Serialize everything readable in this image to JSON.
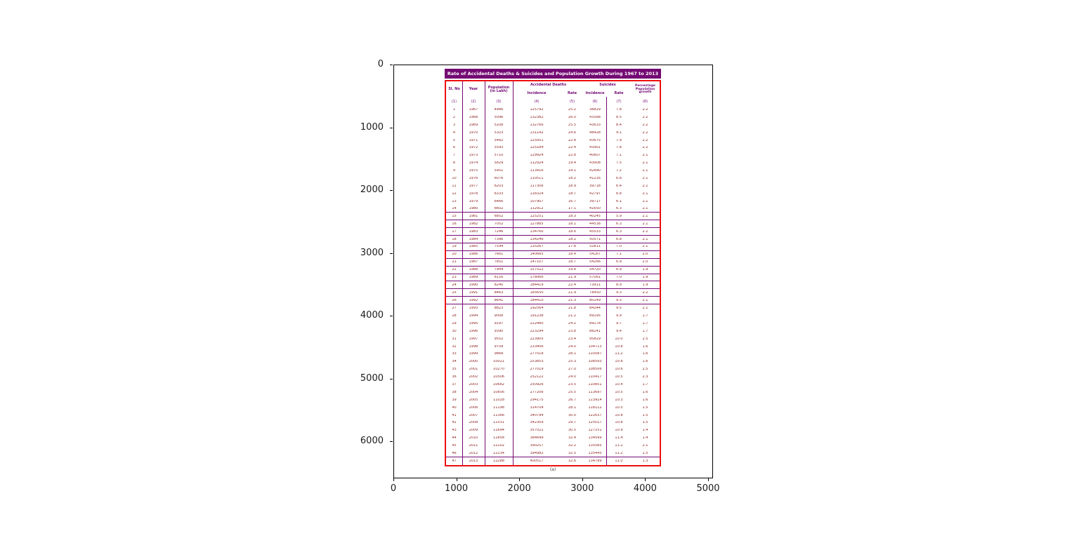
{
  "figure": {
    "background": "#ffffff"
  },
  "axes": {
    "x_ticks": [
      "0",
      "1000",
      "2000",
      "3000",
      "4000",
      "5000"
    ],
    "y_ticks": [
      "0",
      "1000",
      "2000",
      "3000",
      "4000",
      "5000",
      "6000"
    ]
  },
  "colors": {
    "title_bar": "#730973",
    "table_border": "#ee0e0e",
    "separator": "#730973",
    "cell_text": "#8b1a1a"
  },
  "chart_data": {
    "type": "table",
    "title": "Rate of Accidental Deaths & Suicides and Population Growth During 1967 to 2013",
    "caption": "(a)",
    "axes": {
      "x_tick_labels": [
        "0",
        "1000",
        "2000",
        "3000",
        "4000",
        "5000"
      ],
      "y_tick_labels": [
        "0",
        "1000",
        "2000",
        "3000",
        "4000",
        "5000",
        "6000"
      ],
      "x_range": [
        0,
        5080
      ],
      "y_range": [
        6590,
        0
      ],
      "grid": false
    },
    "header": {
      "sl_no": "Sl. No",
      "year": "Year",
      "population": "Population (in Lakh)",
      "accidental_deaths": "Accidental Deaths",
      "suicides": "Suicides",
      "incidence": "Incidence",
      "rate": "Rate",
      "growth": "Percentage Population growth"
    },
    "column_numbers": [
      "(1)",
      "(2)",
      "(3)",
      "(4)",
      "(5)",
      "(6)",
      "(7)",
      "(8)"
    ],
    "columns": [
      "Sl. No",
      "Year",
      "Population (in Lakh)",
      "Accidental Deaths Incidence",
      "Accidental Deaths Rate",
      "Suicides Incidence",
      "Suicides Rate",
      "Percentage Population growth"
    ],
    "rows": [
      [
        "1",
        "1967",
        "4986",
        "125792",
        "25.2",
        "38829",
        "7.8",
        "2.2"
      ],
      [
        "2",
        "1968",
        "5096",
        "132382",
        "26.0",
        "43588",
        "8.5",
        "2.2"
      ],
      [
        "3",
        "1969",
        "5208",
        "132766",
        "25.5",
        "43633",
        "8.4",
        "2.2"
      ],
      [
        "4",
        "1970",
        "5323",
        "131142",
        "24.6",
        "48428",
        "9.1",
        "2.2"
      ],
      [
        "5",
        "1971",
        "5482",
        "125001",
        "22.8",
        "43675",
        "7.9",
        "2.2"
      ],
      [
        "6",
        "1972",
        "5593",
        "125184",
        "22.4",
        "43901",
        "7.8",
        "2.2"
      ],
      [
        "7",
        "1973",
        "5710",
        "129924",
        "22.8",
        "40807",
        "7.1",
        "2.1"
      ],
      [
        "8",
        "1974",
        "5829",
        "112924",
        "19.4",
        "43908",
        "7.5",
        "2.1"
      ],
      [
        "9",
        "1975",
        "5951",
        "113916",
        "19.1",
        "42890",
        "7.2",
        "2.1"
      ],
      [
        "10",
        "1976",
        "6076",
        "110511",
        "18.2",
        "41216",
        "6.8",
        "2.1"
      ],
      [
        "11",
        "1977",
        "6203",
        "117306",
        "18.9",
        "39718",
        "6.4",
        "2.1"
      ],
      [
        "12",
        "1978",
        "6333",
        "118324",
        "18.7",
        "42797",
        "6.8",
        "2.1"
      ],
      [
        "13",
        "1979",
        "6466",
        "107907",
        "16.7",
        "39717",
        "6.1",
        "2.1"
      ],
      [
        "14",
        "1980",
        "6602",
        "112912",
        "17.1",
        "41650",
        "6.3",
        "2.1"
      ],
      [
        "15",
        "1981",
        "6852",
        "125251",
        "18.3",
        "40245",
        "5.9",
        "2.1"
      ],
      [
        "16",
        "1982",
        "7052",
        "127885",
        "18.1",
        "44538",
        "6.3",
        "2.1"
      ],
      [
        "17",
        "1983",
        "7246",
        "134760",
        "18.6",
        "45533",
        "6.3",
        "2.2"
      ],
      [
        "18",
        "1984",
        "7396",
        "134246",
        "18.2",
        "50571",
        "6.8",
        "2.1"
      ],
      [
        "19",
        "1985",
        "7594",
        "135267",
        "17.8",
        "52811",
        "7.0",
        "2.1"
      ],
      [
        "20",
        "1986",
        "7661",
        "140685",
        "18.4",
        "54167",
        "7.1",
        "2.0"
      ],
      [
        "21",
        "1987",
        "7851",
        "147107",
        "18.7",
        "54266",
        "6.9",
        "2.0"
      ],
      [
        "22",
        "1988",
        "7944",
        "157522",
        "19.8",
        "54720",
        "6.9",
        "1.9"
      ],
      [
        "23",
        "1989",
        "8116",
        "178066",
        "21.9",
        "57061",
        "7.0",
        "1.9"
      ],
      [
        "24",
        "1990",
        "8240",
        "184419",
        "22.4",
        "73911",
        "8.9",
        "1.9"
      ],
      [
        "25",
        "1991",
        "8463",
        "185650",
        "21.9",
        "78450",
        "9.3",
        "2.2"
      ],
      [
        "26",
        "1992",
        "8641",
        "184410",
        "21.3",
        "80149",
        "9.3",
        "2.1"
      ],
      [
        "27",
        "1993",
        "8823",
        "192564",
        "21.8",
        "84244",
        "9.5",
        "2.1"
      ],
      [
        "28",
        "1994",
        "9008",
        "191238",
        "21.2",
        "89195",
        "9.9",
        "1.7"
      ],
      [
        "29",
        "1995",
        "9197",
        "222480",
        "24.2",
        "89178",
        "9.7",
        "1.7"
      ],
      [
        "30",
        "1996",
        "9390",
        "223294",
        "23.8",
        "88241",
        "9.4",
        "1.7"
      ],
      [
        "31",
        "1997",
        "9552",
        "223905",
        "23.4",
        "95829",
        "10.0",
        "2.5"
      ],
      [
        "32",
        "1998",
        "9709",
        "233406",
        "24.0",
        "104713",
        "10.8",
        "1.6"
      ],
      [
        "33",
        "1999",
        "9868",
        "277018",
        "28.1",
        "110587",
        "11.2",
        "1.6"
      ],
      [
        "34",
        "2000",
        "10021",
        "253853",
        "25.3",
        "108593",
        "10.8",
        "1.6"
      ],
      [
        "35",
        "2001",
        "10270",
        "277019",
        "27.0",
        "108506",
        "10.6",
        "2.5"
      ],
      [
        "36",
        "2002",
        "10506",
        "252122",
        "24.0",
        "110417",
        "10.5",
        "2.3"
      ],
      [
        "37",
        "2003",
        "10682",
        "250926",
        "23.5",
        "110851",
        "10.4",
        "1.7"
      ],
      [
        "38",
        "2004",
        "10856",
        "277206",
        "25.5",
        "113697",
        "10.5",
        "1.6"
      ],
      [
        "39",
        "2005",
        "11028",
        "294175",
        "26.7",
        "113914",
        "10.3",
        "1.6"
      ],
      [
        "40",
        "2006",
        "11198",
        "314704",
        "28.1",
        "118112",
        "10.5",
        "1.5"
      ],
      [
        "41",
        "2007",
        "11366",
        "340794",
        "30.0",
        "122637",
        "10.8",
        "1.5"
      ],
      [
        "42",
        "2008",
        "11531",
        "342309",
        "29.7",
        "125017",
        "10.8",
        "1.5"
      ],
      [
        "43",
        "2009",
        "11694",
        "357021",
        "30.5",
        "127151",
        "10.9",
        "1.4"
      ],
      [
        "44",
        "2010",
        "11858",
        "384649",
        "32.4",
        "134599",
        "11.4",
        "1.4"
      ],
      [
        "45",
        "2011",
        "12102",
        "390257",
        "32.2",
        "135585",
        "11.2",
        "2.1"
      ],
      [
        "46",
        "2012",
        "12134",
        "394982",
        "32.5",
        "135445",
        "11.2",
        "1.5"
      ],
      [
        "47",
        "2013",
        "12288",
        "400517",
        "32.6",
        "134799",
        "11.0",
        "1.3"
      ]
    ],
    "ruled_band_rows": [
      15,
      26
    ],
    "legend_position": "none"
  }
}
